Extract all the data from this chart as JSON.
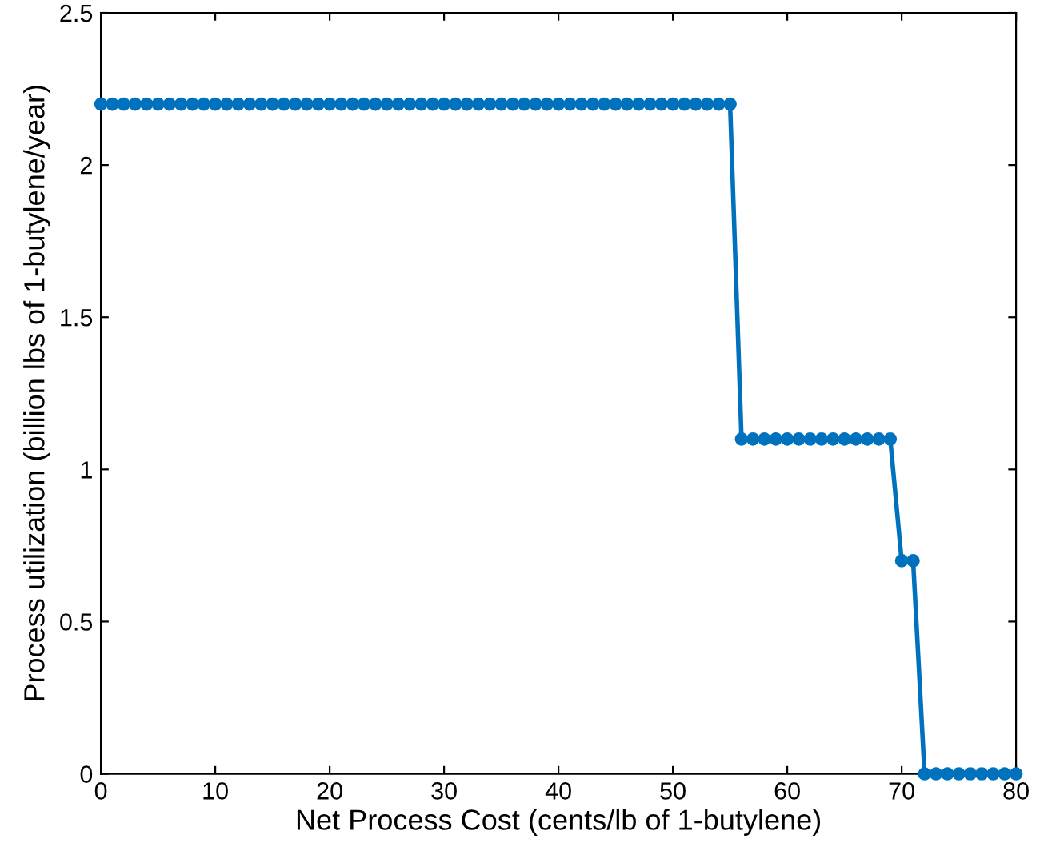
{
  "chart_data": {
    "type": "line",
    "xlabel": "Net Process Cost (cents/lb of 1-butylene)",
    "ylabel": "Process utilization (billion lbs of 1-butylene/year)",
    "x": [
      0,
      1,
      2,
      3,
      4,
      5,
      6,
      7,
      8,
      9,
      10,
      11,
      12,
      13,
      14,
      15,
      16,
      17,
      18,
      19,
      20,
      21,
      22,
      23,
      24,
      25,
      26,
      27,
      28,
      29,
      30,
      31,
      32,
      33,
      34,
      35,
      36,
      37,
      38,
      39,
      40,
      41,
      42,
      43,
      44,
      45,
      46,
      47,
      48,
      49,
      50,
      51,
      52,
      53,
      54,
      55,
      56,
      57,
      58,
      59,
      60,
      61,
      62,
      63,
      64,
      65,
      66,
      67,
      68,
      69,
      70,
      71,
      72,
      73,
      74,
      75,
      76,
      77,
      78,
      79,
      80
    ],
    "series": [
      {
        "color": "#0072bd",
        "values": [
          2.2,
          2.2,
          2.2,
          2.2,
          2.2,
          2.2,
          2.2,
          2.2,
          2.2,
          2.2,
          2.2,
          2.2,
          2.2,
          2.2,
          2.2,
          2.2,
          2.2,
          2.2,
          2.2,
          2.2,
          2.2,
          2.2,
          2.2,
          2.2,
          2.2,
          2.2,
          2.2,
          2.2,
          2.2,
          2.2,
          2.2,
          2.2,
          2.2,
          2.2,
          2.2,
          2.2,
          2.2,
          2.2,
          2.2,
          2.2,
          2.2,
          2.2,
          2.2,
          2.2,
          2.2,
          2.2,
          2.2,
          2.2,
          2.2,
          2.2,
          2.2,
          2.2,
          2.2,
          2.2,
          2.2,
          2.2,
          1.1,
          1.1,
          1.1,
          1.1,
          1.1,
          1.1,
          1.1,
          1.1,
          1.1,
          1.1,
          1.1,
          1.1,
          1.1,
          1.1,
          0.7,
          0.7,
          0,
          0,
          0,
          0,
          0,
          0,
          0,
          0,
          0
        ]
      }
    ],
    "xlim": [
      0,
      80
    ],
    "xticks": [
      0,
      10,
      20,
      30,
      40,
      50,
      60,
      70,
      80
    ],
    "ylim": [
      0,
      2.5
    ],
    "yticks": [
      0,
      0.5,
      1,
      1.5,
      2,
      2.5
    ],
    "grid": false,
    "marker": "circle",
    "line_style": "solid",
    "legend": false
  }
}
